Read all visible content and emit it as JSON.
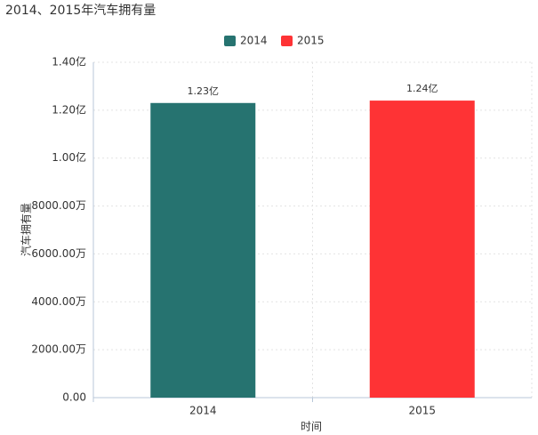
{
  "chart_data": {
    "type": "bar",
    "title": "2014、2015年汽车拥有量",
    "categories": [
      "2014",
      "2015"
    ],
    "series": [
      {
        "name": "2014",
        "color": "#267370",
        "values": [
          12300,
          null
        ],
        "value_labels": [
          "1.23亿",
          null
        ]
      },
      {
        "name": "2015",
        "color": "#fe3335",
        "values": [
          null,
          12400
        ],
        "value_labels": [
          null,
          "1.24亿"
        ]
      }
    ],
    "ylim": [
      0,
      14000
    ],
    "yticks": [
      {
        "value": 0,
        "label": "0.00"
      },
      {
        "value": 2000,
        "label": "2000.00万"
      },
      {
        "value": 4000,
        "label": "4000.00万"
      },
      {
        "value": 6000,
        "label": "6000.00万"
      },
      {
        "value": 8000,
        "label": "8000.00万"
      },
      {
        "value": 10000,
        "label": "1.00亿"
      },
      {
        "value": 12000,
        "label": "1.20亿"
      },
      {
        "value": 14000,
        "label": "1.40亿"
      }
    ],
    "xlabel": "时间",
    "ylabel": "汽车拥有量",
    "grid": true,
    "legend": "top"
  }
}
